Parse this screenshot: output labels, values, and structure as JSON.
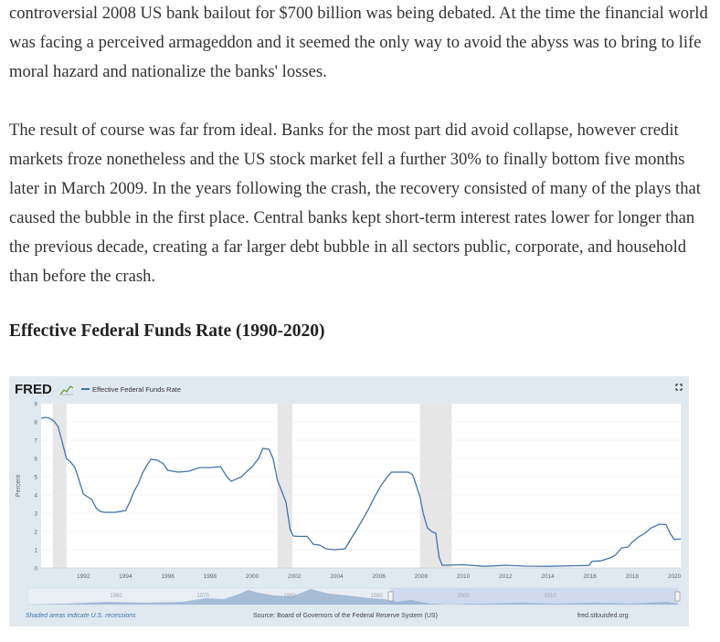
{
  "article": {
    "para1": "controversial 2008 US bank bailout for $700 billion was being debated. At the time the financial world was facing a perceived armageddon and it seemed the only way to avoid the abyss was to bring to life moral hazard and nationalize the banks' losses.",
    "para2": "The result of course was far from ideal. Banks for the most part did avoid collapse, however credit markets froze nonetheless and the US stock market fell a further 30% to finally bottom five months later in March 2009. In the years following the crash, the recovery consisted of many of the plays that caused the bubble in the first place. Central banks kept short-term interest rates lower for longer than the previous decade, creating a far larger debt bubble in all sectors public, corporate, and household than before the crash.",
    "heading": "Effective Federal Funds Rate (1990-2020)"
  },
  "chart_data": {
    "type": "line",
    "brand": "FRED",
    "legend": "Effective Federal Funds Rate",
    "ylabel": "Percent",
    "ylim": [
      0,
      9
    ],
    "xlim": [
      1990.0,
      2020.3
    ],
    "y_ticks": [
      0,
      1,
      2,
      3,
      4,
      5,
      6,
      7,
      8,
      9
    ],
    "x_ticks": [
      1992,
      1994,
      1996,
      1998,
      2000,
      2002,
      2004,
      2006,
      2008,
      2010,
      2012,
      2014,
      2016,
      2018,
      2020
    ],
    "recessions": [
      [
        1990.55,
        1991.2
      ],
      [
        2001.2,
        2001.9
      ],
      [
        2007.95,
        2009.45
      ]
    ],
    "series": [
      {
        "name": "Effective Federal Funds Rate",
        "color": "#4572a7",
        "x": [
          1990.0,
          1990.2,
          1990.4,
          1990.6,
          1990.8,
          1991.0,
          1991.2,
          1991.4,
          1991.6,
          1991.8,
          1992.0,
          1992.2,
          1992.4,
          1992.6,
          1992.8,
          1993.0,
          1993.5,
          1994.0,
          1994.2,
          1994.4,
          1994.6,
          1994.8,
          1995.0,
          1995.2,
          1995.5,
          1995.8,
          1996.0,
          1996.5,
          1997.0,
          1997.5,
          1998.0,
          1998.5,
          1998.8,
          1999.0,
          1999.5,
          1999.8,
          2000.0,
          2000.3,
          2000.5,
          2000.8,
          2001.0,
          2001.2,
          2001.4,
          2001.6,
          2001.8,
          2001.95,
          2002.2,
          2002.6,
          2002.9,
          2003.2,
          2003.5,
          2003.9,
          2004.4,
          2004.6,
          2004.9,
          2005.2,
          2005.5,
          2005.8,
          2006.1,
          2006.4,
          2006.6,
          2007.0,
          2007.4,
          2007.6,
          2007.75,
          2007.95,
          2008.1,
          2008.3,
          2008.5,
          2008.7,
          2008.85,
          2009.0,
          2010.0,
          2011.0,
          2012.0,
          2013.0,
          2014.0,
          2015.0,
          2015.95,
          2016.1,
          2016.5,
          2016.95,
          2017.2,
          2017.5,
          2017.8,
          2018.0,
          2018.3,
          2018.6,
          2018.9,
          2019.3,
          2019.6,
          2019.8,
          2020.0,
          2020.1,
          2020.3
        ],
        "y": [
          8.2,
          8.25,
          8.2,
          8.05,
          7.75,
          6.9,
          6.0,
          5.8,
          5.5,
          4.8,
          4.05,
          3.9,
          3.75,
          3.3,
          3.1,
          3.05,
          3.05,
          3.15,
          3.6,
          4.2,
          4.6,
          5.2,
          5.6,
          5.95,
          5.9,
          5.7,
          5.35,
          5.25,
          5.3,
          5.5,
          5.5,
          5.55,
          5.0,
          4.75,
          5.0,
          5.35,
          5.55,
          6.0,
          6.55,
          6.5,
          5.95,
          4.8,
          4.2,
          3.6,
          2.1,
          1.75,
          1.73,
          1.73,
          1.3,
          1.25,
          1.05,
          1.0,
          1.05,
          1.45,
          2.0,
          2.6,
          3.2,
          3.9,
          4.5,
          5.0,
          5.25,
          5.25,
          5.25,
          5.1,
          4.6,
          3.9,
          3.0,
          2.2,
          2.0,
          1.9,
          0.6,
          0.15,
          0.18,
          0.09,
          0.15,
          0.1,
          0.09,
          0.12,
          0.14,
          0.37,
          0.39,
          0.55,
          0.7,
          1.1,
          1.15,
          1.42,
          1.7,
          1.9,
          2.2,
          2.4,
          2.38,
          1.9,
          1.55,
          1.58,
          1.58
        ]
      }
    ],
    "navigator_labels": [
      "1960",
      "1970",
      "1980",
      "1990",
      "2000",
      "2010"
    ],
    "notes": {
      "recessions": "Shaded areas indicate U.S. recessions",
      "source": "Source: Board of Governors of the Federal Reserve System (US)",
      "site": "fred.stlouisfed.org"
    }
  }
}
